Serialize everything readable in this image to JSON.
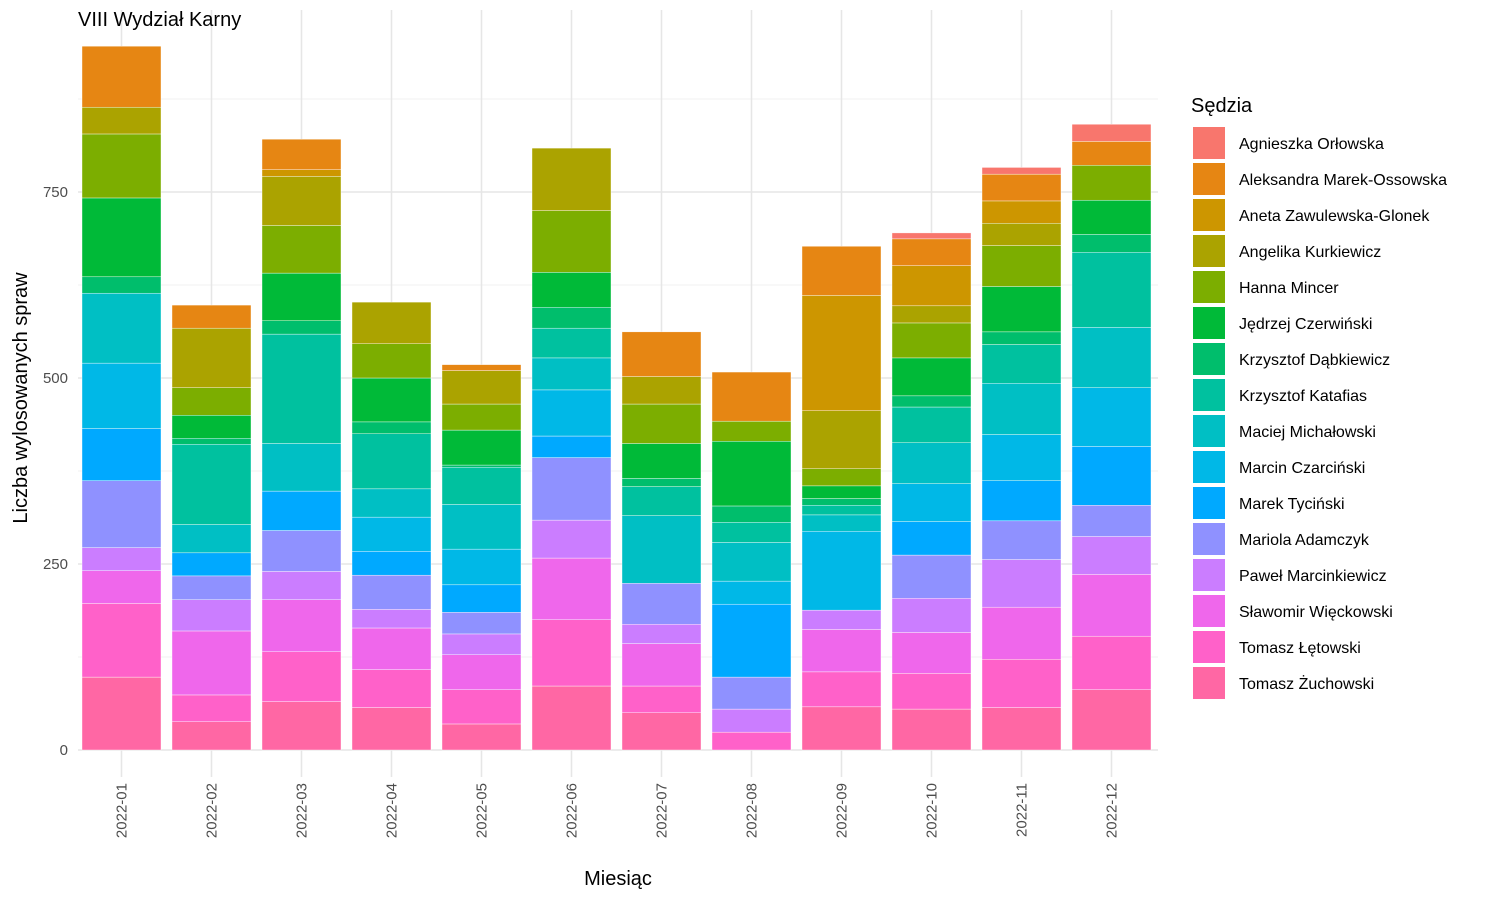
{
  "chart_data": {
    "type": "bar",
    "stacked": true,
    "title": "VIII Wydział Karny",
    "xlabel": "Miesiąc",
    "ylabel": "Liczba wylosowanych spraw",
    "ylim": [
      0,
      945
    ],
    "yticks": [
      0,
      250,
      500,
      750
    ],
    "grid": true,
    "legend": {
      "title": "Sędzia",
      "position": "right"
    },
    "categories": [
      "2022-01",
      "2022-02",
      "2022-03",
      "2022-04",
      "2022-05",
      "2022-06",
      "2022-07",
      "2022-08",
      "2022-09",
      "2022-10",
      "2022-11",
      "2022-12"
    ],
    "series": [
      {
        "name": "Tomasz Żuchowski",
        "color": "#FF67A4",
        "values": [
          98,
          38,
          65,
          57,
          35,
          86,
          50,
          0,
          58,
          55,
          57,
          81
        ]
      },
      {
        "name": "Tomasz Łętowski",
        "color": "#FF61C9",
        "values": [
          99,
          36,
          67,
          51,
          46,
          89,
          36,
          24,
          47,
          48,
          65,
          72
        ]
      },
      {
        "name": "Sławomir Więckowski",
        "color": "#EF67EB",
        "values": [
          44,
          86,
          70,
          56,
          47,
          83,
          57,
          0,
          57,
          55,
          70,
          83
        ]
      },
      {
        "name": "Paweł Marcinkiewicz",
        "color": "#CB7DFF",
        "values": [
          31,
          42,
          38,
          25,
          28,
          51,
          26,
          31,
          26,
          46,
          64,
          51
        ]
      },
      {
        "name": "Mariola Adamczyk",
        "color": "#8F91FF",
        "values": [
          90,
          32,
          55,
          46,
          29,
          84,
          55,
          43,
          0,
          58,
          52,
          42
        ]
      },
      {
        "name": "Marek Tyciński",
        "color": "#00A9FF",
        "values": [
          70,
          31,
          53,
          32,
          37,
          29,
          0,
          98,
          0,
          45,
          54,
          79
        ]
      },
      {
        "name": "Marcin Czarciński",
        "color": "#00B8E7",
        "values": [
          88,
          0,
          0,
          46,
          48,
          62,
          0,
          31,
          106,
          51,
          62,
          79
        ]
      },
      {
        "name": "Maciej Michałowski",
        "color": "#00BFC4",
        "values": [
          94,
          38,
          64,
          38,
          60,
          43,
          91,
          52,
          22,
          55,
          69,
          81
        ]
      },
      {
        "name": "Krzysztof Katafias",
        "color": "#00C19F",
        "values": [
          0,
          108,
          147,
          74,
          50,
          40,
          39,
          27,
          13,
          48,
          52,
          101
        ]
      },
      {
        "name": "Krzysztof Dąbkiewicz",
        "color": "#00BE6C",
        "values": [
          22,
          8,
          18,
          16,
          3,
          28,
          11,
          22,
          9,
          15,
          17,
          24
        ]
      },
      {
        "name": "Jędrzej Czerwiński",
        "color": "#00BA38",
        "values": [
          106,
          31,
          64,
          59,
          47,
          47,
          47,
          87,
          17,
          51,
          61,
          46
        ]
      },
      {
        "name": "Hanna Mincer",
        "color": "#7CAE00",
        "values": [
          86,
          37,
          64,
          46,
          35,
          83,
          53,
          27,
          23,
          47,
          55,
          47
        ]
      },
      {
        "name": "Angelika Kurkiewicz",
        "color": "#ABA300",
        "values": [
          36,
          80,
          66,
          56,
          45,
          84,
          37,
          0,
          78,
          23,
          30,
          0
        ]
      },
      {
        "name": "Aneta Zawulewska-Glonek",
        "color": "#CD9600",
        "values": [
          0,
          0,
          9,
          0,
          0,
          0,
          0,
          0,
          155,
          54,
          30,
          0
        ]
      },
      {
        "name": "Aleksandra Marek-Ossowska",
        "color": "#E68613",
        "values": [
          82,
          31,
          41,
          0,
          8,
          0,
          60,
          66,
          66,
          36,
          36,
          32
        ]
      },
      {
        "name": "Agnieszka Orłowska",
        "color": "#F8766D",
        "values": [
          0,
          0,
          0,
          0,
          0,
          0,
          0,
          0,
          0,
          8,
          9,
          23
        ]
      }
    ]
  }
}
